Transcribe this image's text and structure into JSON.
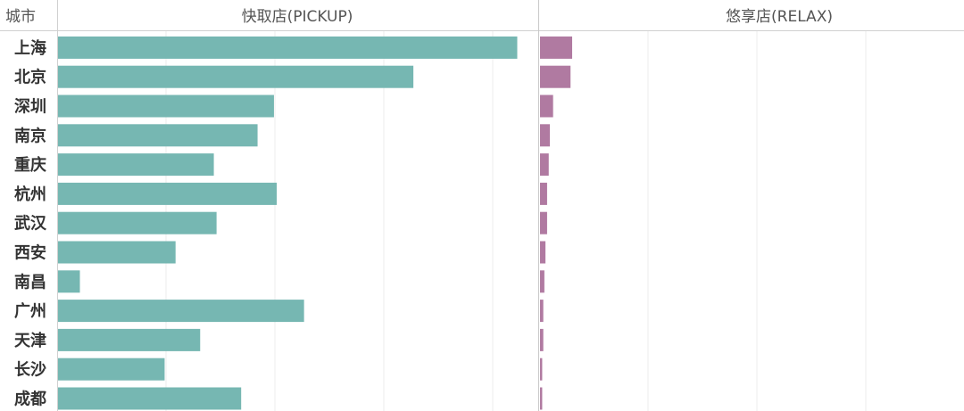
{
  "chart_data": {
    "type": "bar",
    "orientation": "horizontal",
    "row_header": "城市",
    "categories": [
      "上海",
      "北京",
      "深圳",
      "南京",
      "重庆",
      "杭州",
      "武汉",
      "西安",
      "南昌",
      "广州",
      "天津",
      "长沙",
      "成都"
    ],
    "panels": [
      {
        "title": "快取店(PICKUP)",
        "color": "#76b7b2",
        "values": [
          84,
          65,
          39.5,
          36.5,
          28.5,
          40,
          29,
          21.5,
          4,
          45,
          26,
          19.5,
          33.5
        ],
        "xlim": [
          0,
          88
        ]
      },
      {
        "title": "悠享店(RELAX)",
        "color": "#b07aa1",
        "values": [
          5.9,
          5.6,
          2.4,
          1.8,
          1.6,
          1.3,
          1.3,
          1.0,
          0.8,
          0.6,
          0.6,
          0.4,
          0.4
        ],
        "xlim": [
          0,
          78
        ]
      }
    ],
    "grid": true,
    "legend": "none"
  }
}
